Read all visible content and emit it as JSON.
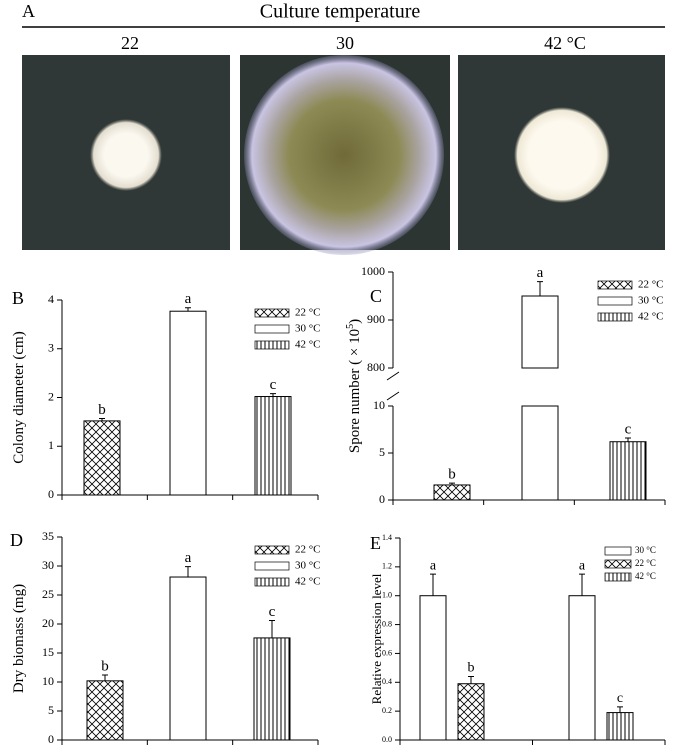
{
  "panel_a": {
    "label": "A",
    "title": "Culture temperature",
    "labels": [
      "22",
      "30",
      "42 °C"
    ]
  },
  "chart_data": [
    {
      "type": "bar",
      "label": "B",
      "ylabel": "Colony diameter (cm)",
      "categories": [
        null,
        null,
        null
      ],
      "ylim": [
        0,
        4
      ],
      "yticks": [
        0,
        1,
        2,
        3,
        4
      ],
      "series": [
        {
          "name": "22 °C",
          "pattern": "cross",
          "values": [
            1.52,
            null,
            null
          ],
          "errors": [
            0.05,
            null,
            null
          ],
          "letters": [
            "b",
            null,
            null
          ]
        },
        {
          "name": "30 °C",
          "pattern": "blank",
          "values": [
            null,
            3.77,
            null
          ],
          "errors": [
            null,
            0.07,
            null
          ],
          "letters": [
            null,
            "a",
            null
          ]
        },
        {
          "name": "42 °C",
          "pattern": "vertical",
          "values": [
            null,
            null,
            2.02
          ],
          "errors": [
            null,
            null,
            0.06
          ],
          "letters": [
            null,
            null,
            "c"
          ]
        }
      ]
    },
    {
      "type": "bar",
      "label": "C",
      "ylabel": "Spore number ( × 10",
      "ylabel_sup": "5",
      "ylabel_end": ")",
      "categories": [
        null,
        null,
        null
      ],
      "ylim": [
        0,
        1000
      ],
      "ybreak": [
        10,
        800
      ],
      "yticks": [
        0,
        5,
        10,
        800,
        900,
        1000
      ],
      "series": [
        {
          "name": "22 °C",
          "pattern": "cross",
          "values": [
            1.6,
            null,
            null
          ],
          "errors": [
            0.2,
            null,
            null
          ],
          "letters": [
            "b",
            null,
            null
          ]
        },
        {
          "name": "30 °C",
          "pattern": "blank",
          "values": [
            null,
            950,
            null
          ],
          "errors": [
            null,
            30,
            null
          ],
          "letters": [
            null,
            "a",
            null
          ]
        },
        {
          "name": "42 °C",
          "pattern": "vertical",
          "values": [
            null,
            null,
            6.2
          ],
          "errors": [
            null,
            null,
            0.4
          ],
          "letters": [
            null,
            null,
            "c"
          ]
        }
      ]
    },
    {
      "type": "bar",
      "label": "D",
      "ylabel": "Dry  biomass (mg)",
      "categories": [
        null,
        null,
        null
      ],
      "ylim": [
        0,
        35
      ],
      "yticks": [
        0,
        5,
        10,
        15,
        20,
        25,
        30,
        35
      ],
      "series": [
        {
          "name": "22 °C",
          "pattern": "cross",
          "values": [
            10.2,
            null,
            null
          ],
          "errors": [
            1,
            null,
            null
          ],
          "letters": [
            "b",
            null,
            null
          ]
        },
        {
          "name": "30 °C",
          "pattern": "blank",
          "values": [
            null,
            28.1,
            null
          ],
          "errors": [
            null,
            1.8,
            null
          ],
          "letters": [
            null,
            "a",
            null
          ]
        },
        {
          "name": "42 °C",
          "pattern": "vertical",
          "values": [
            null,
            null,
            17.6
          ],
          "errors": [
            null,
            null,
            3
          ],
          "letters": [
            null,
            null,
            "c"
          ]
        }
      ]
    },
    {
      "type": "bar",
      "label": "E",
      "ylabel": "Relative expression level",
      "categories": [
        null,
        null
      ],
      "ylim": [
        0,
        1.4
      ],
      "yticks": [
        {
          "value": 0,
          "label": "0.0"
        },
        0.2,
        0.4,
        0.6,
        0.8,
        {
          "value": 1,
          "label": "1.0"
        },
        1.2,
        1.4
      ],
      "series": [
        {
          "name": "30 °C",
          "pattern": "blank",
          "values": [
            1,
            1
          ],
          "errors": [
            0.15,
            0.15
          ],
          "letters": [
            "a",
            "a"
          ]
        },
        {
          "name": "22 °C",
          "pattern": "cross",
          "values": [
            0.39,
            null
          ],
          "errors": [
            0.05,
            null
          ],
          "letters": [
            "b",
            null
          ]
        },
        {
          "name": "42 °C",
          "pattern": "vertical",
          "values": [
            null,
            0.19
          ],
          "errors": [
            null,
            0.04
          ],
          "letters": [
            null,
            "c"
          ]
        }
      ]
    }
  ]
}
